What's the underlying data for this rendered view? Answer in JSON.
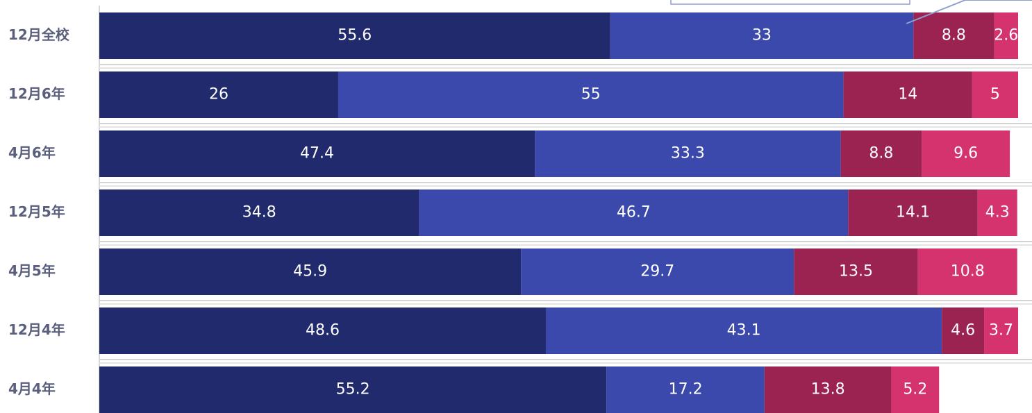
{
  "chart_data": {
    "type": "stacked-bar-horizontal",
    "categories": [
      "12月全校",
      "12月6年",
      "4月6年",
      "12月5年",
      "4月5年",
      "12月4年",
      "4月4年"
    ],
    "series": [
      {
        "color": "#202a6c",
        "values": [
          55.6,
          26,
          47.4,
          34.8,
          45.9,
          48.6,
          55.2
        ]
      },
      {
        "color": "#3a49ab",
        "values": [
          33,
          55,
          33.3,
          46.7,
          29.7,
          43.1,
          17.2
        ]
      },
      {
        "color": "#9b2352",
        "values": [
          8.8,
          14,
          8.8,
          14.1,
          13.5,
          4.6,
          13.8
        ]
      },
      {
        "color": "#d5336d",
        "values": [
          2.6,
          5,
          9.6,
          4.3,
          10.8,
          3.7,
          5.2
        ]
      }
    ],
    "xlim": [
      0,
      100
    ]
  }
}
